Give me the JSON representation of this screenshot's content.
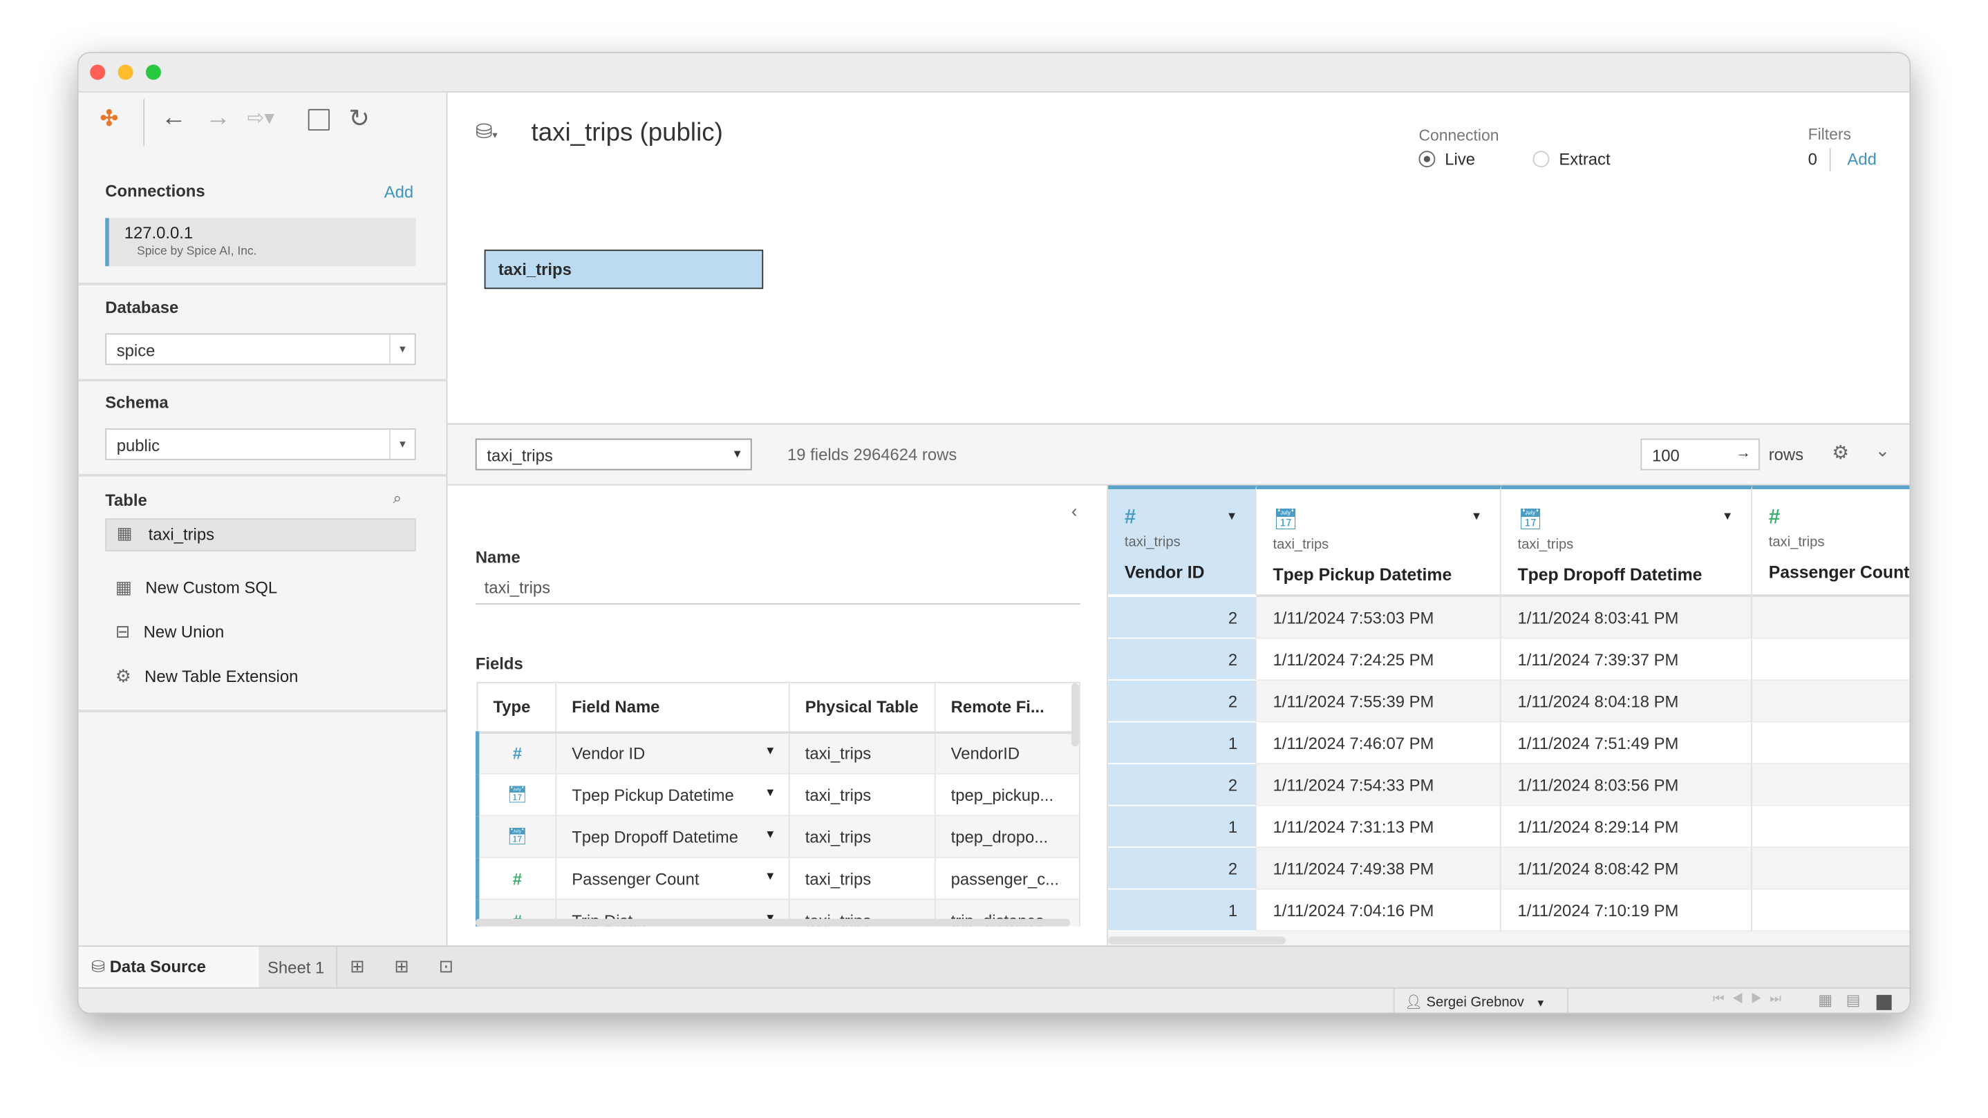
{
  "toolbar": {
    "icons": [
      "tableau-logo-icon",
      "back-icon",
      "forward-icon",
      "redo-icon",
      "save-icon",
      "refresh-icon"
    ]
  },
  "sidebar": {
    "connections_label": "Connections",
    "add_label": "Add",
    "connection": {
      "host": "127.0.0.1",
      "driver": "Spice by Spice AI, Inc."
    },
    "database_label": "Database",
    "database_value": "spice",
    "schema_label": "Schema",
    "schema_value": "public",
    "table_label": "Table",
    "table_item": "taxi_trips",
    "actions": [
      "New Custom SQL",
      "New Union",
      "New Table Extension"
    ]
  },
  "header": {
    "title": "taxi_trips (public)",
    "connection_label": "Connection",
    "live": "Live",
    "extract": "Extract",
    "connection_selected": "Live",
    "filters_label": "Filters",
    "filters_count": "0",
    "filters_add": "Add"
  },
  "canvas": {
    "table_box": "taxi_trips"
  },
  "strip": {
    "table_select": "taxi_trips",
    "summary": "19 fields 2964624 rows",
    "rows_value": "100",
    "rows_label": "rows"
  },
  "meta": {
    "name_label": "Name",
    "name_value": "taxi_trips",
    "fields_label": "Fields",
    "columns": [
      "Type",
      "Field Name",
      "Physical Table",
      "Remote Fi..."
    ],
    "rows": [
      {
        "type": "number",
        "name": "Vendor ID",
        "table": "taxi_trips",
        "remote": "VendorID"
      },
      {
        "type": "datetime",
        "name": "Tpep Pickup Datetime",
        "table": "taxi_trips",
        "remote": "tpep_pickup..."
      },
      {
        "type": "datetime",
        "name": "Tpep Dropoff Datetime",
        "table": "taxi_trips",
        "remote": "tpep_dropo..."
      },
      {
        "type": "number",
        "name": "Passenger Count",
        "table": "taxi_trips",
        "remote": "passenger_c..."
      },
      {
        "type": "number",
        "name": "Trip Dist...",
        "table": "taxi_trips",
        "remote": "trip_distance"
      }
    ]
  },
  "grid": {
    "columns": [
      {
        "source": "taxi_trips",
        "name": "Vendor ID",
        "type": "number"
      },
      {
        "source": "taxi_trips",
        "name": "Tpep Pickup Datetime",
        "type": "datetime"
      },
      {
        "source": "taxi_trips",
        "name": "Tpep Dropoff Datetime",
        "type": "datetime"
      },
      {
        "source": "taxi_trips",
        "name": "Passenger Count",
        "type": "number"
      }
    ],
    "rows": [
      [
        "2",
        "1/11/2024 7:53:03 PM",
        "1/11/2024 8:03:41 PM",
        ""
      ],
      [
        "2",
        "1/11/2024 7:24:25 PM",
        "1/11/2024 7:39:37 PM",
        ""
      ],
      [
        "2",
        "1/11/2024 7:55:39 PM",
        "1/11/2024 8:04:18 PM",
        ""
      ],
      [
        "1",
        "1/11/2024 7:46:07 PM",
        "1/11/2024 7:51:49 PM",
        ""
      ],
      [
        "2",
        "1/11/2024 7:54:33 PM",
        "1/11/2024 8:03:56 PM",
        ""
      ],
      [
        "1",
        "1/11/2024 7:31:13 PM",
        "1/11/2024 8:29:14 PM",
        ""
      ],
      [
        "2",
        "1/11/2024 7:49:38 PM",
        "1/11/2024 8:08:42 PM",
        ""
      ],
      [
        "1",
        "1/11/2024 7:04:16 PM",
        "1/11/2024 7:10:19 PM",
        ""
      ]
    ]
  },
  "tabs": {
    "data_source": "Data Source",
    "sheet1": "Sheet 1"
  },
  "status": {
    "user": "Sergei Grebnov"
  },
  "colors": {
    "accent": "#4a9cc5",
    "selected_column": "#cfe5f6",
    "table_box": "#bcdaf0",
    "number_green": "#3fae6c"
  }
}
